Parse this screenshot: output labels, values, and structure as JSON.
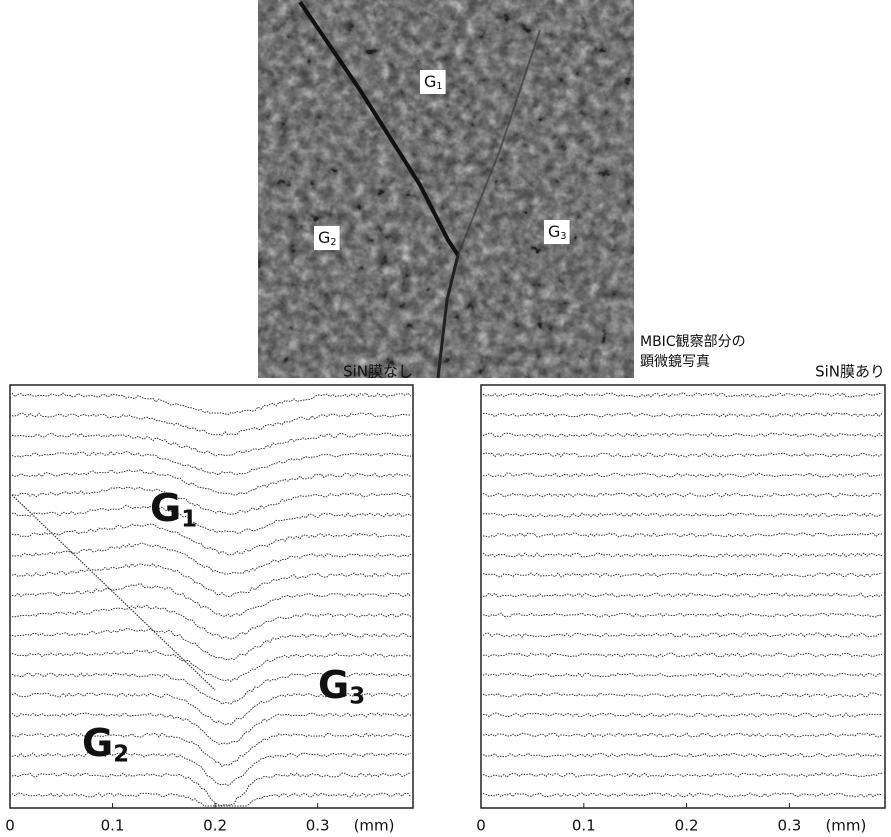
{
  "photo": {
    "grain_labels": [
      {
        "letter": "G",
        "sub": "1"
      },
      {
        "letter": "G",
        "sub": "2"
      },
      {
        "letter": "G",
        "sub": "3"
      }
    ],
    "caption": [
      "MBIC観察部分の",
      "顕微鏡写真"
    ]
  },
  "panels": [
    {
      "title": "SiN膜なし",
      "x_ticks": [
        0,
        0.1,
        0.2,
        0.3
      ],
      "x_unit": "(mm)",
      "grain_labels": [
        {
          "letter": "G",
          "sub": "1"
        },
        {
          "letter": "G",
          "sub": "2"
        },
        {
          "letter": "G",
          "sub": "3"
        }
      ]
    },
    {
      "title": "SiN膜あり",
      "x_ticks": [
        0,
        0.1,
        0.2,
        0.3
      ],
      "x_unit": "(mm)"
    }
  ]
}
